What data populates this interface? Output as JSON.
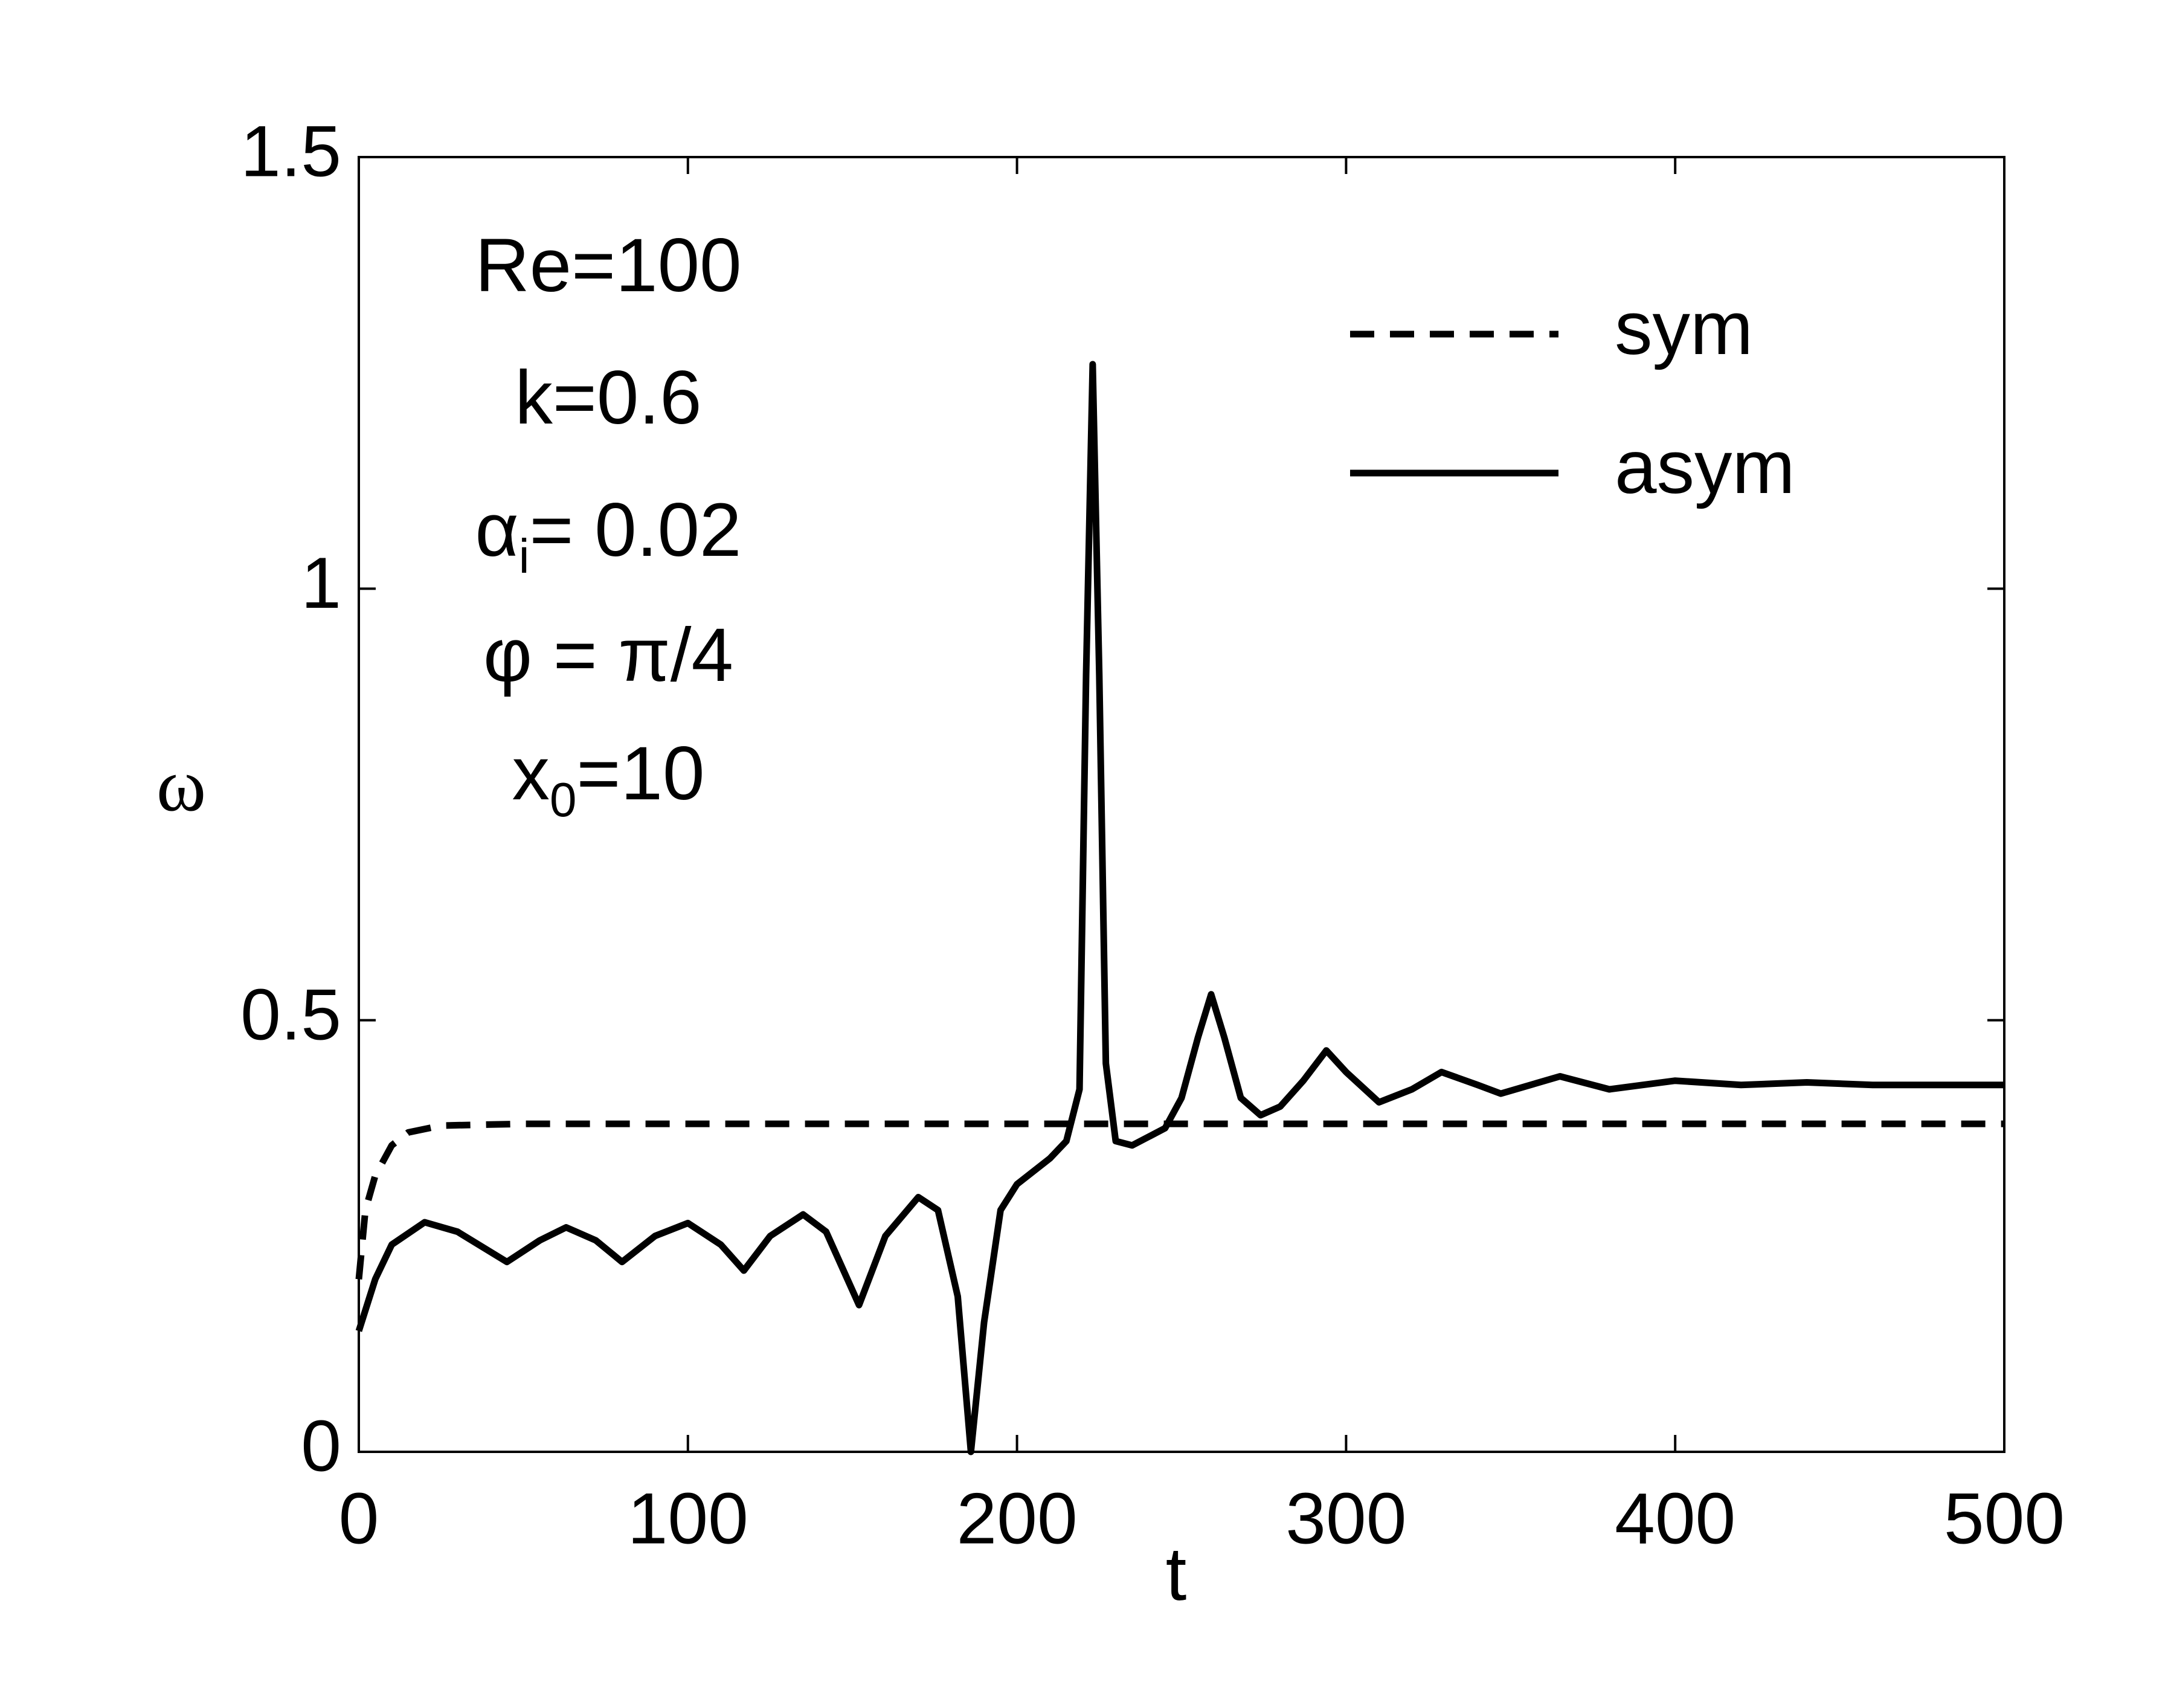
{
  "chart_data": {
    "type": "line",
    "xlabel": "t",
    "ylabel": "ω",
    "xlim": [
      0,
      500
    ],
    "ylim": [
      0,
      1.5
    ],
    "xticks": [
      0,
      100,
      200,
      300,
      400,
      500
    ],
    "yticks": [
      0,
      0.5,
      1,
      1.5
    ],
    "legend": "upper right",
    "annotations": [
      [
        "Re=100"
      ],
      [
        "k=0.6"
      ],
      [
        "α",
        "i",
        "= 0.02"
      ],
      [
        "φ = π/4"
      ],
      [
        "x",
        "0",
        "=10"
      ]
    ],
    "series": [
      {
        "name": "sym",
        "color": "#000000",
        "dash": true,
        "x": [
          0,
          2,
          5,
          10,
          15,
          25,
          50,
          100,
          200,
          300,
          400,
          500
        ],
        "values": [
          0.2,
          0.28,
          0.32,
          0.355,
          0.37,
          0.378,
          0.38,
          0.38,
          0.38,
          0.38,
          0.38,
          0.38
        ]
      },
      {
        "name": "asym",
        "color": "#000000",
        "dash": false,
        "x": [
          0,
          5,
          10,
          20,
          30,
          45,
          55,
          63,
          72,
          80,
          90,
          100,
          110,
          117,
          125,
          135,
          142,
          152,
          160,
          170,
          176,
          182,
          186,
          190,
          195,
          200,
          210,
          215,
          219,
          221,
          223,
          225,
          227,
          230,
          235,
          245,
          250,
          255,
          259,
          263,
          268,
          274,
          280,
          287,
          294,
          300,
          310,
          320,
          329,
          340,
          347,
          365,
          380,
          400,
          420,
          440,
          460,
          500
        ],
        "values": [
          0.14,
          0.2,
          0.24,
          0.266,
          0.255,
          0.22,
          0.245,
          0.26,
          0.245,
          0.22,
          0.25,
          0.265,
          0.24,
          0.21,
          0.25,
          0.275,
          0.255,
          0.17,
          0.25,
          0.295,
          0.28,
          0.18,
          0.0,
          0.15,
          0.28,
          0.31,
          0.34,
          0.36,
          0.42,
          0.9,
          1.26,
          0.9,
          0.45,
          0.36,
          0.355,
          0.375,
          0.41,
          0.48,
          0.53,
          0.48,
          0.41,
          0.39,
          0.4,
          0.43,
          0.465,
          0.44,
          0.405,
          0.42,
          0.44,
          0.425,
          0.415,
          0.435,
          0.42,
          0.43,
          0.425,
          0.428,
          0.425,
          0.425
        ]
      }
    ]
  }
}
